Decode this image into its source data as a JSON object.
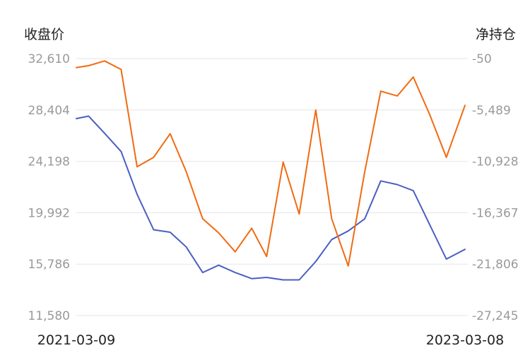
{
  "chart_data": {
    "type": "line",
    "ylabel_left": "收盘价",
    "ylabel_right": "净持仓",
    "y_left_ticks": [
      "32,610",
      "28,404",
      "24,198",
      "19,992",
      "15,786",
      "11,580"
    ],
    "y_right_ticks": [
      "-50",
      "-5,489",
      "-10,928",
      "-16,367",
      "-21,806",
      "-27,245"
    ],
    "ylim_left": [
      11580,
      32610
    ],
    "ylim_right": [
      -27245,
      -50
    ],
    "x_start_label": "2021-03-09",
    "x_end_label": "2023-03-08",
    "x": [
      "2021-03-09",
      "2021-04-01",
      "2021-05-01",
      "2021-06-01",
      "2021-07-01",
      "2021-08-01",
      "2021-09-01",
      "2021-10-01",
      "2021-11-01",
      "2021-12-01",
      "2022-01-01",
      "2022-02-01",
      "2022-03-01",
      "2022-04-01",
      "2022-05-01",
      "2022-06-01",
      "2022-07-01",
      "2022-08-01",
      "2022-09-01",
      "2022-10-01",
      "2022-11-01",
      "2022-12-01",
      "2023-01-01",
      "2023-02-01",
      "2023-03-08"
    ],
    "grid": true,
    "series": [
      {
        "axis": "left",
        "color": "#4a5fc1",
        "values": [
          27700,
          27900,
          26500,
          25000,
          21500,
          18600,
          18400,
          17200,
          15100,
          15700,
          15100,
          14600,
          14700,
          14500,
          14500,
          16000,
          17800,
          18500,
          19500,
          22600,
          22300,
          21800,
          19000,
          16200,
          17000
        ]
      },
      {
        "axis": "right",
        "color": "#f26a10",
        "values": [
          -1000,
          -800,
          -300,
          -1200,
          -11500,
          -10500,
          -8000,
          -12000,
          -17000,
          -18500,
          -20500,
          -18000,
          -21000,
          -11000,
          -16500,
          -5500,
          -17000,
          -22000,
          -12000,
          -3500,
          -4000,
          -2000,
          -6000,
          -10500,
          -5000
        ]
      }
    ]
  }
}
